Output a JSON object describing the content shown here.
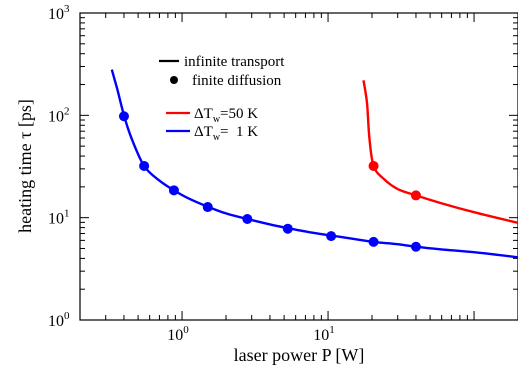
{
  "chart_data": {
    "type": "line",
    "xlabel": "laser power P [W]",
    "ylabel_main": "heating time",
    "ylabel_symbol": "τ",
    "ylabel_unit": "[ps]",
    "x_scale": "log",
    "y_scale": "log",
    "xlim": [
      0.2,
      200
    ],
    "ylim": [
      1,
      1000
    ],
    "grid": false,
    "x_ticks": [
      {
        "value": 1,
        "mantissa": "10",
        "exponent": "0"
      },
      {
        "value": 10,
        "mantissa": "10",
        "exponent": "1"
      }
    ],
    "y_ticks": [
      {
        "value": 1,
        "mantissa": "10",
        "exponent": "0"
      },
      {
        "value": 10,
        "mantissa": "10",
        "exponent": "1"
      },
      {
        "value": 100,
        "mantissa": "10",
        "exponent": "2"
      },
      {
        "value": 1000,
        "mantissa": "10",
        "exponent": "3"
      }
    ],
    "legend": {
      "placement": "upper-center",
      "style_entries": [
        {
          "marker": "line",
          "color": "#000000",
          "label": "infinite transport"
        },
        {
          "marker": "dot",
          "color": "#000000",
          "label": "finite diffusion"
        }
      ],
      "series_entries": [
        {
          "color": "#ff0000",
          "delta": "ΔT",
          "sub": "w",
          "value": "=50 K"
        },
        {
          "color": "#0000ff",
          "delta": "ΔT",
          "sub": "w",
          "value": "=  1 K"
        }
      ]
    },
    "series": [
      {
        "label": "ΔTw=1 K",
        "color": "#0000ff",
        "line": [
          [
            0.33,
            280
          ],
          [
            0.36,
            180
          ],
          [
            0.4,
            100
          ],
          [
            0.45,
            60
          ],
          [
            0.55,
            32
          ],
          [
            0.7,
            23
          ],
          [
            0.88,
            18.5
          ],
          [
            1.1,
            15.5
          ],
          [
            1.5,
            12.8
          ],
          [
            2,
            11
          ],
          [
            2.8,
            9.7
          ],
          [
            4,
            8.6
          ],
          [
            5.3,
            7.9
          ],
          [
            7.5,
            7.2
          ],
          [
            10.5,
            6.7
          ],
          [
            15,
            6.2
          ],
          [
            20.5,
            5.8
          ],
          [
            30,
            5.5
          ],
          [
            40,
            5.2
          ],
          [
            60,
            4.9
          ],
          [
            100,
            4.6
          ],
          [
            200,
            4.1
          ]
        ],
        "points": [
          [
            0.4,
            98
          ],
          [
            0.55,
            32
          ],
          [
            0.88,
            18.5
          ],
          [
            1.5,
            12.7
          ],
          [
            2.8,
            9.7
          ],
          [
            5.3,
            7.8
          ],
          [
            10.5,
            6.6
          ],
          [
            20.5,
            5.8
          ],
          [
            40,
            5.2
          ]
        ]
      },
      {
        "label": "ΔTw=50 K",
        "color": "#ff0000",
        "line": [
          [
            17.5,
            220
          ],
          [
            18.5,
            130
          ],
          [
            19.2,
            60
          ],
          [
            20.5,
            32
          ],
          [
            24,
            24
          ],
          [
            30,
            19
          ],
          [
            40,
            16.5
          ],
          [
            60,
            13.8
          ],
          [
            100,
            11.3
          ],
          [
            200,
            8.9
          ]
        ],
        "points": [
          [
            20.5,
            32
          ],
          [
            40,
            16.5
          ]
        ]
      }
    ]
  }
}
